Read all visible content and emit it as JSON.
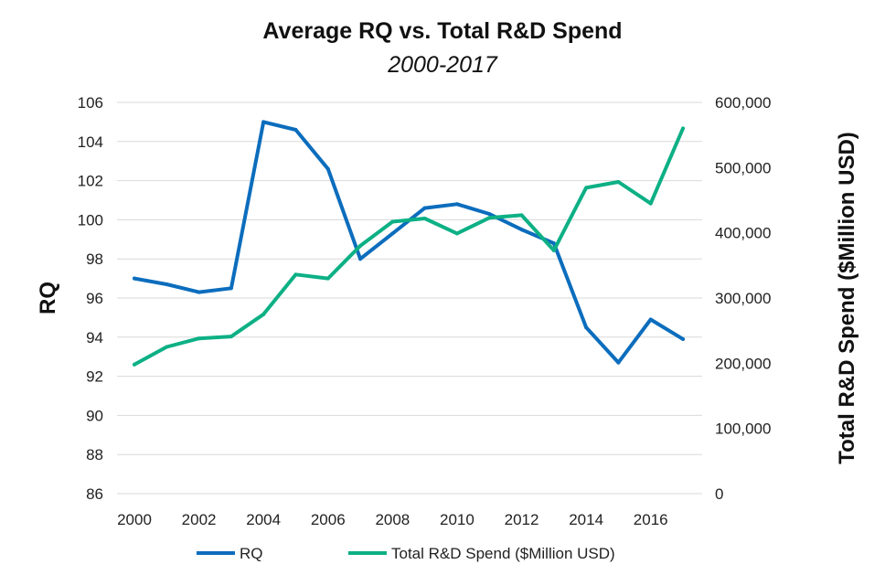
{
  "chart_data": {
    "type": "line",
    "title": "Average RQ vs. Total R&D Spend",
    "subtitle": "2000-2017",
    "x": [
      2000,
      2001,
      2002,
      2003,
      2004,
      2005,
      2006,
      2007,
      2008,
      2009,
      2010,
      2011,
      2012,
      2013,
      2014,
      2015,
      2016,
      2017
    ],
    "x_ticks": [
      "2000",
      "2002",
      "2004",
      "2006",
      "2008",
      "2010",
      "2012",
      "2014",
      "2016"
    ],
    "ylabel_left": "RQ",
    "ylabel_right": "Total R&D Spend ($Million USD)",
    "ylim_left": [
      86,
      106
    ],
    "yticks_left": [
      "106",
      "104",
      "102",
      "100",
      "98",
      "96",
      "94",
      "92",
      "90",
      "88",
      "86"
    ],
    "ylim_right": [
      0,
      600000
    ],
    "yticks_right": [
      "600,000",
      "500,000",
      "400,000",
      "300,000",
      "200,000",
      "100,000",
      "0"
    ],
    "grid": "horizontal",
    "legend_position": "bottom",
    "series": [
      {
        "name": "RQ",
        "axis": "left",
        "color": "#0c6dbd",
        "values": [
          97.0,
          96.7,
          96.3,
          96.5,
          105.0,
          104.6,
          102.6,
          98.0,
          99.3,
          100.6,
          100.8,
          100.3,
          99.5,
          98.8,
          94.5,
          92.7,
          94.9,
          93.9
        ]
      },
      {
        "name": "Total R&D Spend ($Million USD)",
        "axis": "right",
        "color": "#0db085",
        "values": [
          198000,
          225000,
          238000,
          241000,
          275000,
          336000,
          330000,
          380000,
          417000,
          422000,
          399000,
          423000,
          427000,
          373000,
          469000,
          478000,
          445000,
          560000
        ]
      }
    ]
  }
}
